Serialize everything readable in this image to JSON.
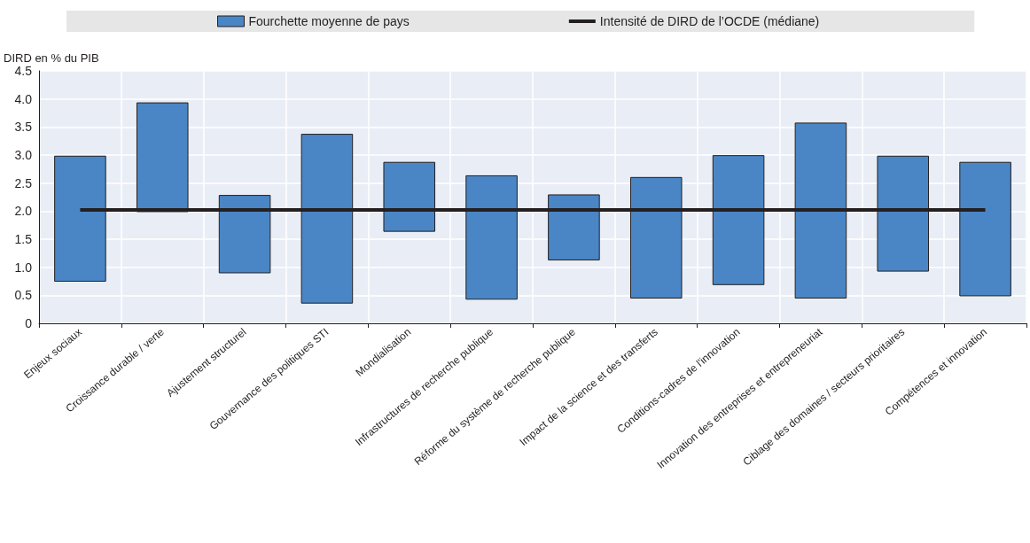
{
  "chart_data": {
    "type": "bar",
    "ylabel": "DIRD en % du PIB",
    "categories": [
      "Enjeux sociaux",
      "Croissance durable / verte",
      "Ajustement structurel",
      "Gouvernance des politiques STI",
      "Mondialisation",
      "Infrastructures de recherche publique",
      "Réforme du système de recherche publique",
      "Impact de la science et des transferts",
      "Conditions-cadres de l'innovation",
      "Innovation des entreprises et entrepreneuriat",
      "Ciblage des domaines / secteurs prioritaires",
      "Compétences et innovation"
    ],
    "series": [
      {
        "name": "Fourchette moyenne de pays",
        "color": "#4a86c5",
        "base": [
          0.75,
          1.99,
          0.9,
          0.36,
          1.64,
          0.43,
          1.13,
          0.45,
          0.69,
          0.45,
          0.93,
          0.49
        ],
        "values": [
          2.23,
          1.94,
          1.38,
          3.01,
          1.23,
          2.2,
          1.16,
          2.15,
          2.3,
          3.12,
          2.05,
          2.38
        ]
      },
      {
        "type": "line",
        "name": "Intensité de DIRD de l’OCDE (médiane)",
        "color": "#231f20",
        "values": [
          2.02,
          2.02,
          2.02,
          2.02,
          2.02,
          2.02,
          2.02,
          2.02,
          2.02,
          2.02,
          2.02,
          2.02
        ]
      }
    ],
    "ylim": [
      0,
      4.5
    ],
    "yticks": [
      {
        "value": 0,
        "label": "0"
      },
      {
        "value": 0.5,
        "label": "0.5"
      },
      {
        "value": 1,
        "label": "1.0"
      },
      {
        "value": 1.5,
        "label": "1.5"
      },
      {
        "value": 2,
        "label": "2.0"
      },
      {
        "value": 2.5,
        "label": "2.5"
      },
      {
        "value": 3,
        "label": "3.0"
      },
      {
        "value": 3.5,
        "label": "3.5"
      },
      {
        "value": 4,
        "label": "4.0"
      },
      {
        "value": 4.5,
        "label": "4.5"
      }
    ],
    "grid": true,
    "legend": "top",
    "marker": "none"
  }
}
